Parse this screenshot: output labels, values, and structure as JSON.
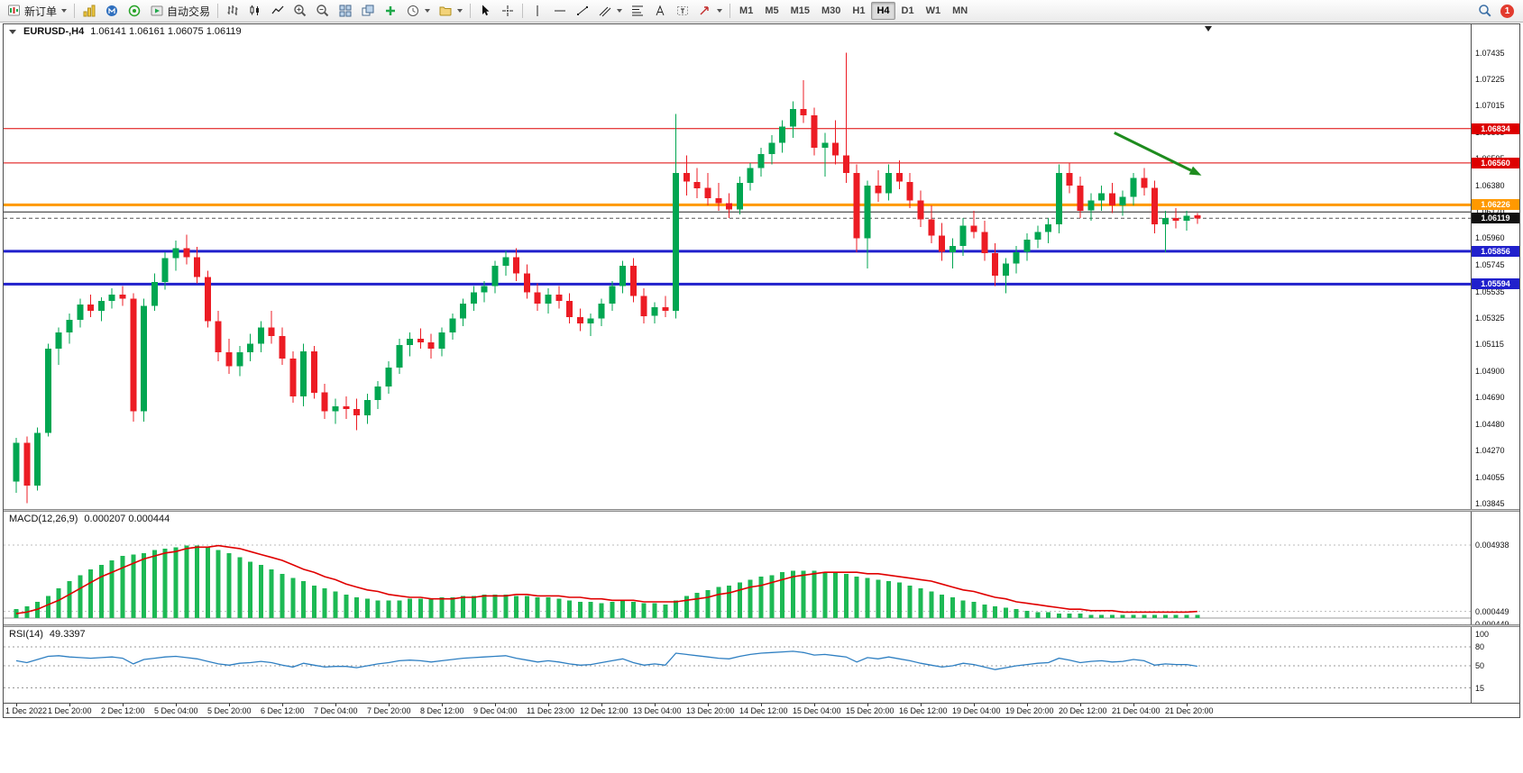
{
  "toolbar": {
    "new_order": "新订单",
    "autotrading": "自动交易",
    "timeframes": [
      "M1",
      "M5",
      "M15",
      "M30",
      "H1",
      "H4",
      "D1",
      "W1",
      "MN"
    ],
    "active_timeframe": "H4",
    "notification_count": "1",
    "icon_names": [
      "new-order-icon",
      "charts-icon",
      "mql5-icon",
      "signals-icon",
      "autotrading-icon",
      "bar-chart-icon",
      "candlestick-chart-icon",
      "line-chart-icon",
      "zoom-in-icon",
      "zoom-out-icon",
      "tile-windows-icon",
      "cascade-windows-icon",
      "indicators-icon",
      "periods-icon",
      "templates-icon",
      "cursor-icon",
      "crosshair-icon",
      "vertical-line-icon",
      "horizontal-line-icon",
      "trendline-icon",
      "channel-icon",
      "fibonacci-icon",
      "text-icon",
      "label-icon",
      "arrows-icon",
      "search-icon",
      "notification-badge"
    ]
  },
  "chart": {
    "up_color": "#00A651",
    "down_color": "#EC1C24",
    "price_axis_labels": [
      "1.07435",
      "1.07225",
      "1.07015",
      "1.06805",
      "1.06595",
      "1.06380",
      "1.06170",
      "1.05960",
      "1.05745",
      "1.05535",
      "1.05325",
      "1.05115",
      "1.04900",
      "1.04690",
      "1.04480",
      "1.04270",
      "1.04055",
      "1.03845"
    ],
    "levels": [
      {
        "price": 1.06834,
        "label": "1.06834",
        "color": "#dd0000",
        "width": 1
      },
      {
        "price": 1.0656,
        "label": "1.06560",
        "color": "#dd0000",
        "width": 1
      },
      {
        "price": 1.06226,
        "label": "1.06226",
        "color": "#ff9900",
        "width": 3
      },
      {
        "price": 1.0617,
        "label": null,
        "color": "#222222",
        "width": 1
      },
      {
        "price": 1.05856,
        "label": "1.05856",
        "color": "#2020cc",
        "width": 3
      },
      {
        "price": 1.05594,
        "label": "1.05594",
        "color": "#2020cc",
        "width": 3
      }
    ],
    "bid_line": {
      "price": 1.06119,
      "label": "1.06119",
      "color": "#111111"
    },
    "arrow": {
      "from_candle": 103.2,
      "from_price": 1.068,
      "to_candle": 111.4,
      "to_price": 1.0646,
      "color": "#1e8c1e"
    }
  },
  "chart_data": [
    {
      "type": "candlestick",
      "title": "EURUSD-,H4",
      "ohlc_display": "1.06141 1.06161 1.06075 1.06119",
      "ylim": [
        1.038,
        1.0768
      ],
      "label_step": 5,
      "x_labels": [
        "1 Dec 2022",
        "1 Dec 20:00",
        "2 Dec 12:00",
        "5 Dec 04:00",
        "5 Dec 20:00",
        "6 Dec 12:00",
        "7 Dec 04:00",
        "7 Dec 20:00",
        "8 Dec 12:00",
        "9 Dec 04:00",
        "11 Dec 23:00",
        "12 Dec 12:00",
        "13 Dec 04:00",
        "13 Dec 20:00",
        "14 Dec 12:00",
        "15 Dec 04:00",
        "15 Dec 20:00",
        "16 Dec 12:00",
        "19 Dec 04:00",
        "19 Dec 20:00",
        "20 Dec 12:00",
        "21 Dec 04:00",
        "21 Dec 20:00"
      ],
      "candles": [
        [
          1.0402,
          1.0437,
          1.0393,
          1.0433
        ],
        [
          1.0433,
          1.0438,
          1.0385,
          1.0399
        ],
        [
          1.0399,
          1.0445,
          1.0395,
          1.0441
        ],
        [
          1.0441,
          1.0512,
          1.0438,
          1.0508
        ],
        [
          1.0508,
          1.0525,
          1.0495,
          1.0521
        ],
        [
          1.0521,
          1.0536,
          1.0512,
          1.0531
        ],
        [
          1.0531,
          1.0548,
          1.0525,
          1.0543
        ],
        [
          1.0543,
          1.0551,
          1.0533,
          1.0538
        ],
        [
          1.0538,
          1.0549,
          1.053,
          1.0546
        ],
        [
          1.0546,
          1.0556,
          1.054,
          1.0551
        ],
        [
          1.0551,
          1.0558,
          1.0542,
          1.0548
        ],
        [
          1.0548,
          1.0552,
          1.045,
          1.0458
        ],
        [
          1.0458,
          1.0548,
          1.045,
          1.0542
        ],
        [
          1.0542,
          1.0568,
          1.0538,
          1.0561
        ],
        [
          1.0561,
          1.0585,
          1.0555,
          1.058
        ],
        [
          1.058,
          1.0594,
          1.057,
          1.0588
        ],
        [
          1.0588,
          1.0599,
          1.0575,
          1.0581
        ],
        [
          1.0581,
          1.0589,
          1.056,
          1.0565
        ],
        [
          1.0565,
          1.057,
          1.0525,
          1.053
        ],
        [
          1.053,
          1.0538,
          1.0498,
          1.0505
        ],
        [
          1.0505,
          1.0516,
          1.0488,
          1.0494
        ],
        [
          1.0494,
          1.051,
          1.0486,
          1.0505
        ],
        [
          1.0505,
          1.052,
          1.0498,
          1.0512
        ],
        [
          1.0512,
          1.053,
          1.0505,
          1.0525
        ],
        [
          1.0525,
          1.0538,
          1.0512,
          1.0518
        ],
        [
          1.0518,
          1.0525,
          1.0495,
          1.05
        ],
        [
          1.05,
          1.0506,
          1.0465,
          1.047
        ],
        [
          1.047,
          1.0512,
          1.0462,
          1.0506
        ],
        [
          1.0506,
          1.051,
          1.0468,
          1.0473
        ],
        [
          1.0473,
          1.048,
          1.0452,
          1.0458
        ],
        [
          1.0458,
          1.0468,
          1.0448,
          1.0462
        ],
        [
          1.0462,
          1.047,
          1.0452,
          1.046
        ],
        [
          1.046,
          1.0468,
          1.0443,
          1.0455
        ],
        [
          1.0455,
          1.0472,
          1.0448,
          1.0467
        ],
        [
          1.0467,
          1.0482,
          1.046,
          1.0478
        ],
        [
          1.0478,
          1.0498,
          1.0472,
          1.0493
        ],
        [
          1.0493,
          1.0516,
          1.0488,
          1.0511
        ],
        [
          1.0511,
          1.0521,
          1.0502,
          1.0516
        ],
        [
          1.0516,
          1.0524,
          1.0508,
          1.0513
        ],
        [
          1.0513,
          1.052,
          1.05,
          1.0508
        ],
        [
          1.0508,
          1.0525,
          1.0502,
          1.0521
        ],
        [
          1.0521,
          1.0536,
          1.0515,
          1.0532
        ],
        [
          1.0532,
          1.0548,
          1.0526,
          1.0544
        ],
        [
          1.0544,
          1.0558,
          1.0538,
          1.0553
        ],
        [
          1.0553,
          1.0562,
          1.0545,
          1.0558
        ],
        [
          1.0558,
          1.0578,
          1.0552,
          1.0574
        ],
        [
          1.0574,
          1.0586,
          1.0566,
          1.0581
        ],
        [
          1.0581,
          1.0588,
          1.0562,
          1.0568
        ],
        [
          1.0568,
          1.0575,
          1.0548,
          1.0553
        ],
        [
          1.0553,
          1.056,
          1.0538,
          1.0544
        ],
        [
          1.0544,
          1.0556,
          1.0536,
          1.0551
        ],
        [
          1.0551,
          1.0558,
          1.054,
          1.0546
        ],
        [
          1.0546,
          1.0552,
          1.0528,
          1.0533
        ],
        [
          1.0533,
          1.054,
          1.0522,
          1.0528
        ],
        [
          1.0528,
          1.0536,
          1.0518,
          1.0532
        ],
        [
          1.0532,
          1.0548,
          1.0526,
          1.0544
        ],
        [
          1.0544,
          1.0562,
          1.0538,
          1.0558
        ],
        [
          1.0558,
          1.0578,
          1.0552,
          1.0574
        ],
        [
          1.0574,
          1.058,
          1.0545,
          1.055
        ],
        [
          1.055,
          1.0556,
          1.0528,
          1.0534
        ],
        [
          1.0534,
          1.0545,
          1.0528,
          1.0541
        ],
        [
          1.0541,
          1.055,
          1.0533,
          1.0538
        ],
        [
          1.0538,
          1.0695,
          1.0532,
          1.0648
        ],
        [
          1.0648,
          1.0662,
          1.063,
          1.0641
        ],
        [
          1.0641,
          1.0652,
          1.0628,
          1.0636
        ],
        [
          1.0636,
          1.0648,
          1.0622,
          1.0628
        ],
        [
          1.0628,
          1.064,
          1.0618,
          1.0624
        ],
        [
          1.0624,
          1.0632,
          1.0612,
          1.0619
        ],
        [
          1.0619,
          1.0645,
          1.0615,
          1.064
        ],
        [
          1.064,
          1.0656,
          1.0634,
          1.0652
        ],
        [
          1.0652,
          1.0668,
          1.0645,
          1.0663
        ],
        [
          1.0663,
          1.0678,
          1.0655,
          1.0672
        ],
        [
          1.0672,
          1.069,
          1.0664,
          1.0685
        ],
        [
          1.0685,
          1.0705,
          1.0676,
          1.0699
        ],
        [
          1.0699,
          1.0722,
          1.0688,
          1.0694
        ],
        [
          1.0694,
          1.07,
          1.0662,
          1.0668
        ],
        [
          1.0668,
          1.068,
          1.0645,
          1.0672
        ],
        [
          1.0672,
          1.069,
          1.0655,
          1.0662
        ],
        [
          1.0662,
          1.0744,
          1.064,
          1.0648
        ],
        [
          1.0648,
          1.0655,
          1.0585,
          1.0596
        ],
        [
          1.0596,
          1.0642,
          1.0572,
          1.0638
        ],
        [
          1.0638,
          1.065,
          1.0625,
          1.0632
        ],
        [
          1.0632,
          1.0655,
          1.0626,
          1.0648
        ],
        [
          1.0648,
          1.0658,
          1.0635,
          1.0641
        ],
        [
          1.0641,
          1.0648,
          1.062,
          1.0626
        ],
        [
          1.0626,
          1.0634,
          1.0605,
          1.0611
        ],
        [
          1.0611,
          1.0622,
          1.0592,
          1.0598
        ],
        [
          1.0598,
          1.0608,
          1.0578,
          1.0585
        ],
        [
          1.0585,
          1.0596,
          1.0572,
          1.059
        ],
        [
          1.059,
          1.0612,
          1.0582,
          1.0606
        ],
        [
          1.0606,
          1.0618,
          1.0596,
          1.0601
        ],
        [
          1.0601,
          1.061,
          1.0578,
          1.0584
        ],
        [
          1.0584,
          1.0592,
          1.0558,
          1.0566
        ],
        [
          1.0566,
          1.058,
          1.0552,
          1.0576
        ],
        [
          1.0576,
          1.059,
          1.0568,
          1.0585
        ],
        [
          1.0585,
          1.06,
          1.0578,
          1.0595
        ],
        [
          1.0595,
          1.0606,
          1.0588,
          1.0601
        ],
        [
          1.0601,
          1.0612,
          1.0592,
          1.0607
        ],
        [
          1.0607,
          1.0655,
          1.06,
          1.0648
        ],
        [
          1.0648,
          1.0656,
          1.0632,
          1.0638
        ],
        [
          1.0638,
          1.0645,
          1.0612,
          1.0618
        ],
        [
          1.0618,
          1.0632,
          1.061,
          1.0626
        ],
        [
          1.0626,
          1.0638,
          1.0618,
          1.0632
        ],
        [
          1.0632,
          1.064,
          1.0616,
          1.0622
        ],
        [
          1.0622,
          1.0634,
          1.0614,
          1.0629
        ],
        [
          1.0629,
          1.0648,
          1.0622,
          1.0644
        ],
        [
          1.0644,
          1.0652,
          1.063,
          1.0636
        ],
        [
          1.0636,
          1.0642,
          1.06,
          1.0607
        ],
        [
          1.0607,
          1.0618,
          1.0585,
          1.0612
        ],
        [
          1.0612,
          1.062,
          1.0604,
          1.061
        ],
        [
          1.061,
          1.0618,
          1.0602,
          1.0614
        ],
        [
          1.06141,
          1.06161,
          1.06075,
          1.06119
        ]
      ]
    },
    {
      "type": "bar",
      "title": "MACD(12,26,9)",
      "values_display": "0.000207 0.000444",
      "color_histogram": "#1db954",
      "color_signal": "#e00000",
      "axis_labels": [
        {
          "text": "0.004938",
          "value": 0.004938
        },
        {
          "text": "0.000449",
          "value": 0.000449
        },
        {
          "text": "0.000449",
          "value": -0.000449
        }
      ],
      "values": [
        0.0006,
        0.0008,
        0.0011,
        0.0015,
        0.002,
        0.0025,
        0.0029,
        0.0033,
        0.0036,
        0.0039,
        0.0042,
        0.0043,
        0.0044,
        0.0046,
        0.0047,
        0.0048,
        0.0049,
        0.0049,
        0.0048,
        0.0046,
        0.0044,
        0.0041,
        0.0038,
        0.0036,
        0.0033,
        0.003,
        0.0027,
        0.0025,
        0.0022,
        0.002,
        0.0018,
        0.0016,
        0.0014,
        0.0013,
        0.0012,
        0.0012,
        0.0012,
        0.0013,
        0.0013,
        0.0013,
        0.0014,
        0.0014,
        0.0015,
        0.0015,
        0.0016,
        0.0016,
        0.0016,
        0.0015,
        0.0015,
        0.0014,
        0.0014,
        0.0013,
        0.0012,
        0.0011,
        0.0011,
        0.001,
        0.0011,
        0.0012,
        0.0011,
        0.001,
        0.001,
        0.0009,
        0.0012,
        0.0015,
        0.0017,
        0.0019,
        0.0021,
        0.0022,
        0.0024,
        0.0026,
        0.0028,
        0.0029,
        0.0031,
        0.0032,
        0.0032,
        0.0032,
        0.0031,
        0.0031,
        0.003,
        0.0028,
        0.0027,
        0.0026,
        0.0025,
        0.0024,
        0.0022,
        0.002,
        0.0018,
        0.0016,
        0.0014,
        0.0012,
        0.0011,
        0.0009,
        0.0008,
        0.0007,
        0.0006,
        0.0005,
        0.0004,
        0.0004,
        0.0003,
        0.0003,
        0.0003,
        0.0002,
        0.0002,
        0.0002,
        0.0002,
        0.0002,
        0.0002,
        0.0002,
        0.0002,
        0.0002,
        0.0002,
        0.000207
      ],
      "signal": [
        0.0003,
        0.0004,
        0.0006,
        0.0009,
        0.0012,
        0.0016,
        0.002,
        0.0024,
        0.0028,
        0.0031,
        0.0034,
        0.0037,
        0.004,
        0.0042,
        0.0044,
        0.0045,
        0.0047,
        0.0048,
        0.0048,
        0.0049,
        0.0048,
        0.0047,
        0.0045,
        0.0043,
        0.0041,
        0.0039,
        0.0036,
        0.0033,
        0.0031,
        0.0028,
        0.0026,
        0.0023,
        0.0021,
        0.0019,
        0.0018,
        0.0016,
        0.0015,
        0.0014,
        0.0014,
        0.0013,
        0.0013,
        0.0013,
        0.0014,
        0.0014,
        0.0015,
        0.0015,
        0.0015,
        0.0016,
        0.0016,
        0.0015,
        0.0015,
        0.0015,
        0.0014,
        0.0014,
        0.0013,
        0.0013,
        0.0012,
        0.0012,
        0.0012,
        0.0011,
        0.0011,
        0.0011,
        0.0011,
        0.0012,
        0.0013,
        0.0014,
        0.0016,
        0.0017,
        0.0019,
        0.0021,
        0.0022,
        0.0024,
        0.0026,
        0.0028,
        0.0029,
        0.003,
        0.0031,
        0.0031,
        0.0031,
        0.0031,
        0.003,
        0.003,
        0.0029,
        0.0028,
        0.0027,
        0.0026,
        0.0025,
        0.0023,
        0.0021,
        0.0019,
        0.0018,
        0.0016,
        0.0014,
        0.0013,
        0.0011,
        0.001,
        0.0009,
        0.0008,
        0.0007,
        0.0006,
        0.0006,
        0.0005,
        0.0005,
        0.0005,
        0.0004,
        0.0004,
        0.0004,
        0.0004,
        0.0004,
        0.0004,
        0.0004,
        0.000444
      ]
    },
    {
      "type": "line",
      "title": "RSI(14)",
      "value_display": "49.3397",
      "color": "#2e7fc2",
      "levels": [
        80,
        50,
        15
      ],
      "axis_labels": [
        {
          "text": "100",
          "value": 100
        },
        {
          "text": "80",
          "value": 80
        },
        {
          "text": "50",
          "value": 50
        },
        {
          "text": "15",
          "value": 15
        }
      ],
      "ylim": [
        0,
        100
      ],
      "values": [
        58,
        55,
        60,
        65,
        66,
        64,
        63,
        62,
        63,
        64,
        62,
        53,
        60,
        62,
        64,
        65,
        63,
        61,
        57,
        53,
        51,
        54,
        55,
        57,
        55,
        51,
        48,
        54,
        51,
        48,
        49,
        49,
        47,
        50,
        53,
        55,
        58,
        59,
        58,
        56,
        58,
        60,
        62,
        63,
        64,
        65,
        66,
        62,
        59,
        56,
        58,
        56,
        53,
        51,
        52,
        55,
        58,
        61,
        55,
        51,
        53,
        51,
        70,
        68,
        66,
        64,
        62,
        61,
        65,
        68,
        70,
        71,
        72,
        73,
        71,
        67,
        68,
        66,
        64,
        56,
        63,
        61,
        64,
        61,
        58,
        54,
        51,
        48,
        50,
        54,
        52,
        48,
        44,
        47,
        50,
        52,
        54,
        55,
        62,
        59,
        55,
        57,
        58,
        56,
        57,
        60,
        58,
        51,
        53,
        52,
        52,
        49.3397
      ]
    }
  ]
}
